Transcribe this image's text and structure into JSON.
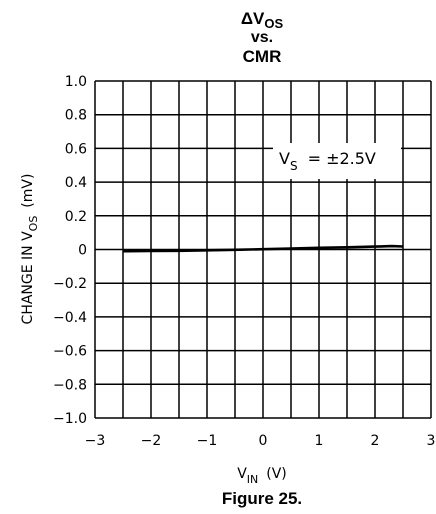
{
  "chart_data": {
    "type": "line",
    "title": {
      "line1_prefix": "ΔV",
      "line1_sub": "OS",
      "line2": "vs.",
      "line3": "CMR"
    },
    "xlabel": {
      "main": "V",
      "sub": "IN",
      "unit": "(V)"
    },
    "ylabel": {
      "main": "CHANGE IN V",
      "sub": "OS",
      "unit": "(mV)"
    },
    "xlim": [
      -3,
      3
    ],
    "ylim": [
      -1.0,
      1.0
    ],
    "x_ticks": [
      "−3",
      "−2",
      "−1",
      "0",
      "1",
      "2",
      "3"
    ],
    "y_ticks": [
      "1.0",
      "0.8",
      "0.6",
      "0.4",
      "0.2",
      "0",
      "−0.2",
      "−0.4",
      "−0.6",
      "−0.8",
      "−1.0"
    ],
    "grid": true,
    "annotation": {
      "main": "V",
      "sub": "S",
      "text": "= ±2.5V"
    },
    "series": [
      {
        "x": [
          -2.5,
          -2.0,
          -1.5,
          -1.0,
          -0.5,
          0.0,
          0.5,
          1.0,
          1.5,
          2.0,
          2.3,
          2.5
        ],
        "y": [
          -0.01,
          -0.009,
          -0.008,
          -0.005,
          -0.002,
          0.002,
          0.006,
          0.01,
          0.013,
          0.017,
          0.02,
          0.018
        ]
      }
    ]
  },
  "caption": "Figure 25."
}
